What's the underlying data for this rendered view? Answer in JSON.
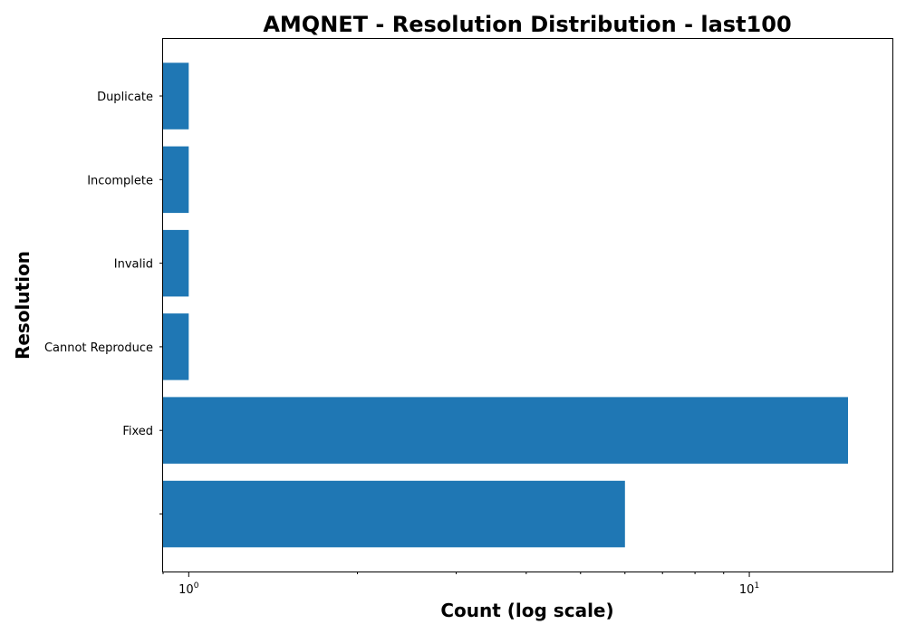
{
  "chart_data": {
    "type": "bar",
    "orientation": "horizontal",
    "title": "AMQNET - Resolution Distribution - last100",
    "xlabel": "Count (log scale)",
    "ylabel": "Resolution",
    "xscale": "log",
    "xlim": [
      0.9,
      18
    ],
    "grid": false,
    "legend": "none",
    "bar_color": "#1f77b4",
    "categories": [
      "",
      "Fixed",
      "Cannot Reproduce",
      "Invalid",
      "Incomplete",
      "Duplicate"
    ],
    "values": [
      6,
      15,
      1,
      1,
      1,
      1
    ],
    "x_ticks": [
      {
        "value": 1,
        "base": "10",
        "exp": "0"
      },
      {
        "value": 10,
        "base": "10",
        "exp": "1"
      }
    ]
  }
}
